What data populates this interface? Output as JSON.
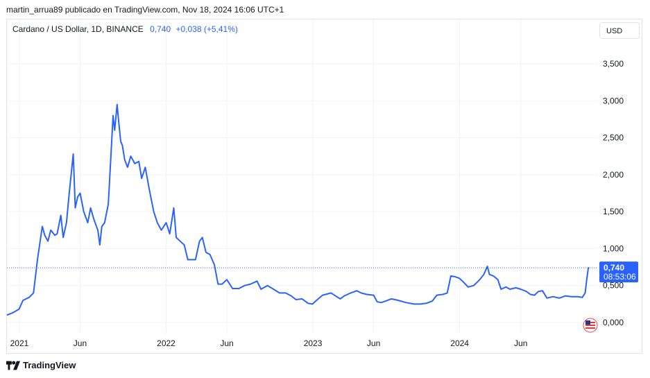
{
  "header": {
    "publisher_line": "martin_arrua89 publicado en TradingView.com, Nov 18, 2024 16:06 UTC+1"
  },
  "legend": {
    "symbol": "Cardano / US Dollar, 1D, BINANCE",
    "price": "0,740",
    "change": "+0,038 (+5,41%)"
  },
  "currency_button": "USD",
  "last_price": {
    "value": "0,740",
    "countdown": "08:53:06"
  },
  "footer": {
    "brand": "TradingView"
  },
  "colors": {
    "line": "#2962ff",
    "label_bg": "#2962ff",
    "grid": "#f0f3fa",
    "text": "#131722"
  },
  "chart_data": {
    "type": "line",
    "title": "Cardano / US Dollar, 1D, BINANCE",
    "y_ticks": [
      "0,000",
      "0,500",
      "1,000",
      "1,500",
      "2,000",
      "2,500",
      "3,000",
      "3,500"
    ],
    "y_tick_values": [
      0,
      0.5,
      1.0,
      1.5,
      2.0,
      2.5,
      3.0,
      3.5
    ],
    "x_ticks": [
      {
        "label": "2021",
        "date": "2021-01-01"
      },
      {
        "label": "Jun",
        "date": "2021-06-01"
      },
      {
        "label": "2022",
        "date": "2022-01-01"
      },
      {
        "label": "Jun",
        "date": "2022-06-01"
      },
      {
        "label": "2023",
        "date": "2023-01-01"
      },
      {
        "label": "Jun",
        "date": "2023-06-01"
      },
      {
        "label": "2024",
        "date": "2024-01-01"
      },
      {
        "label": "Jun",
        "date": "2024-06-01"
      }
    ],
    "ylim": [
      0,
      3.6
    ],
    "xlim": [
      "2020-12-01",
      "2024-12-10"
    ],
    "grid": true,
    "series": [
      {
        "points": [
          [
            "2020-12-01",
            0.1
          ],
          [
            "2020-12-15",
            0.13
          ],
          [
            "2020-12-31",
            0.18
          ],
          [
            "2021-01-10",
            0.3
          ],
          [
            "2021-01-25",
            0.34
          ],
          [
            "2021-02-05",
            0.4
          ],
          [
            "2021-02-15",
            0.85
          ],
          [
            "2021-02-27",
            1.3
          ],
          [
            "2021-03-05",
            1.18
          ],
          [
            "2021-03-13",
            1.1
          ],
          [
            "2021-03-20",
            1.25
          ],
          [
            "2021-03-30",
            1.18
          ],
          [
            "2021-04-05",
            1.2
          ],
          [
            "2021-04-14",
            1.45
          ],
          [
            "2021-04-20",
            1.15
          ],
          [
            "2021-04-28",
            1.35
          ],
          [
            "2021-05-05",
            1.75
          ],
          [
            "2021-05-15",
            2.28
          ],
          [
            "2021-05-20",
            1.55
          ],
          [
            "2021-05-26",
            1.7
          ],
          [
            "2021-06-01",
            1.75
          ],
          [
            "2021-06-10",
            1.5
          ],
          [
            "2021-06-20",
            1.35
          ],
          [
            "2021-06-27",
            1.55
          ],
          [
            "2021-07-05",
            1.4
          ],
          [
            "2021-07-15",
            1.25
          ],
          [
            "2021-07-20",
            1.05
          ],
          [
            "2021-07-25",
            1.3
          ],
          [
            "2021-08-01",
            1.35
          ],
          [
            "2021-08-10",
            1.6
          ],
          [
            "2021-08-15",
            2.1
          ],
          [
            "2021-08-22",
            2.8
          ],
          [
            "2021-08-26",
            2.6
          ],
          [
            "2021-09-01",
            2.95
          ],
          [
            "2021-09-05",
            2.72
          ],
          [
            "2021-09-10",
            2.45
          ],
          [
            "2021-09-14",
            2.4
          ],
          [
            "2021-09-20",
            2.2
          ],
          [
            "2021-09-27",
            2.1
          ],
          [
            "2021-10-05",
            2.25
          ],
          [
            "2021-10-15",
            2.15
          ],
          [
            "2021-10-25",
            2.18
          ],
          [
            "2021-11-01",
            1.95
          ],
          [
            "2021-11-10",
            2.1
          ],
          [
            "2021-11-20",
            1.8
          ],
          [
            "2021-12-01",
            1.5
          ],
          [
            "2021-12-10",
            1.35
          ],
          [
            "2021-12-20",
            1.25
          ],
          [
            "2022-01-01",
            1.35
          ],
          [
            "2022-01-10",
            1.2
          ],
          [
            "2022-01-20",
            1.55
          ],
          [
            "2022-01-26",
            1.15
          ],
          [
            "2022-02-05",
            1.1
          ],
          [
            "2022-02-15",
            1.05
          ],
          [
            "2022-02-24",
            0.85
          ],
          [
            "2022-03-05",
            0.85
          ],
          [
            "2022-03-15",
            0.85
          ],
          [
            "2022-03-25",
            1.1
          ],
          [
            "2022-04-01",
            1.15
          ],
          [
            "2022-04-10",
            0.95
          ],
          [
            "2022-04-20",
            0.92
          ],
          [
            "2022-05-01",
            0.78
          ],
          [
            "2022-05-10",
            0.52
          ],
          [
            "2022-05-20",
            0.52
          ],
          [
            "2022-06-01",
            0.58
          ],
          [
            "2022-06-15",
            0.46
          ],
          [
            "2022-07-01",
            0.46
          ],
          [
            "2022-07-15",
            0.5
          ],
          [
            "2022-07-30",
            0.52
          ],
          [
            "2022-08-15",
            0.56
          ],
          [
            "2022-08-25",
            0.45
          ],
          [
            "2022-09-10",
            0.5
          ],
          [
            "2022-09-25",
            0.45
          ],
          [
            "2022-10-10",
            0.4
          ],
          [
            "2022-10-25",
            0.4
          ],
          [
            "2022-11-08",
            0.36
          ],
          [
            "2022-11-20",
            0.31
          ],
          [
            "2022-12-05",
            0.32
          ],
          [
            "2022-12-20",
            0.26
          ],
          [
            "2022-12-31",
            0.25
          ],
          [
            "2023-01-10",
            0.3
          ],
          [
            "2023-01-25",
            0.37
          ],
          [
            "2023-02-15",
            0.4
          ],
          [
            "2023-03-01",
            0.35
          ],
          [
            "2023-03-10",
            0.32
          ],
          [
            "2023-03-20",
            0.36
          ],
          [
            "2023-04-05",
            0.4
          ],
          [
            "2023-04-20",
            0.43
          ],
          [
            "2023-05-01",
            0.4
          ],
          [
            "2023-05-15",
            0.38
          ],
          [
            "2023-06-01",
            0.37
          ],
          [
            "2023-06-10",
            0.28
          ],
          [
            "2023-06-20",
            0.27
          ],
          [
            "2023-07-01",
            0.29
          ],
          [
            "2023-07-15",
            0.32
          ],
          [
            "2023-08-01",
            0.3
          ],
          [
            "2023-08-20",
            0.27
          ],
          [
            "2023-09-10",
            0.25
          ],
          [
            "2023-09-25",
            0.25
          ],
          [
            "2023-10-10",
            0.26
          ],
          [
            "2023-10-25",
            0.29
          ],
          [
            "2023-11-05",
            0.37
          ],
          [
            "2023-11-20",
            0.38
          ],
          [
            "2023-12-01",
            0.4
          ],
          [
            "2023-12-10",
            0.63
          ],
          [
            "2023-12-20",
            0.62
          ],
          [
            "2023-12-31",
            0.6
          ],
          [
            "2024-01-10",
            0.55
          ],
          [
            "2024-01-22",
            0.48
          ],
          [
            "2024-02-05",
            0.5
          ],
          [
            "2024-02-20",
            0.58
          ],
          [
            "2024-03-01",
            0.65
          ],
          [
            "2024-03-10",
            0.76
          ],
          [
            "2024-03-15",
            0.65
          ],
          [
            "2024-03-25",
            0.63
          ],
          [
            "2024-04-05",
            0.58
          ],
          [
            "2024-04-13",
            0.45
          ],
          [
            "2024-04-25",
            0.48
          ],
          [
            "2024-05-05",
            0.45
          ],
          [
            "2024-05-20",
            0.47
          ],
          [
            "2024-06-01",
            0.45
          ],
          [
            "2024-06-15",
            0.42
          ],
          [
            "2024-06-25",
            0.38
          ],
          [
            "2024-07-05",
            0.37
          ],
          [
            "2024-07-15",
            0.42
          ],
          [
            "2024-07-25",
            0.43
          ],
          [
            "2024-08-05",
            0.33
          ],
          [
            "2024-08-20",
            0.35
          ],
          [
            "2024-09-05",
            0.33
          ],
          [
            "2024-09-20",
            0.36
          ],
          [
            "2024-10-05",
            0.35
          ],
          [
            "2024-10-20",
            0.35
          ],
          [
            "2024-11-01",
            0.34
          ],
          [
            "2024-11-08",
            0.4
          ],
          [
            "2024-11-12",
            0.58
          ],
          [
            "2024-11-16",
            0.74
          ],
          [
            "2024-11-18",
            0.74
          ]
        ]
      }
    ],
    "last_value": 0.74
  }
}
